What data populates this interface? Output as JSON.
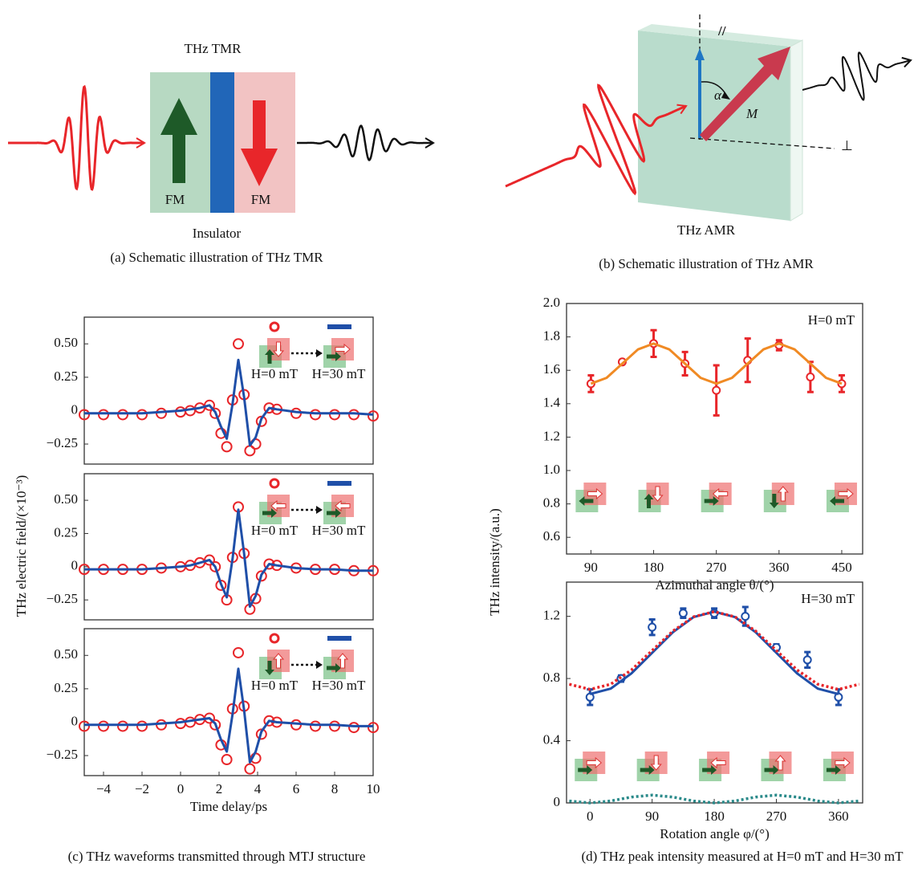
{
  "figure": {
    "panel_a": {
      "title": "THz TMR",
      "left_layer": "FM",
      "right_layer": "FM",
      "barrier": "Insulator",
      "caption": "(a) Schematic illustration of THz TMR"
    },
    "panel_b": {
      "parallel": "//",
      "angle": "α",
      "magnetization": "M",
      "perpendicular": "⊥",
      "label": "THz AMR",
      "caption": "(b) Schematic illustration of THz AMR"
    },
    "panel_c_caption": "(c) THz waveforms transmitted through MTJ structure",
    "panel_d_caption": "(d) THz peak intensity measured at H=0 mT and H=30 mT"
  },
  "chart_data": [
    {
      "type": "line",
      "ylabel": "THz electric field/(×10⁻³)",
      "x": [
        -5,
        -4,
        -3,
        -2,
        -1,
        0,
        0.5,
        1,
        1.5,
        1.8,
        2.1,
        2.4,
        2.7,
        3,
        3.3,
        3.6,
        3.9,
        4.2,
        4.6,
        5,
        6,
        7,
        8,
        9,
        10
      ],
      "series": [
        {
          "name": "H=0 mT",
          "color": "#e8262a",
          "style": "markers",
          "values": [
            -0.03,
            -0.03,
            -0.03,
            -0.03,
            -0.02,
            -0.01,
            0,
            0.02,
            0.04,
            -0.02,
            -0.17,
            -0.27,
            0.08,
            0.5,
            0.12,
            -0.3,
            -0.25,
            -0.08,
            0.02,
            0.01,
            -0.02,
            -0.03,
            -0.03,
            -0.03,
            -0.04
          ]
        },
        {
          "name": "H=30 mT",
          "color": "#1f4fa8",
          "style": "line",
          "values": [
            -0.02,
            -0.02,
            -0.02,
            -0.02,
            -0.01,
            0,
            0.01,
            0.02,
            0.04,
            -0.01,
            -0.12,
            -0.21,
            0.05,
            0.38,
            0.1,
            -0.26,
            -0.2,
            -0.06,
            0.02,
            0.01,
            -0.01,
            -0.02,
            -0.02,
            -0.02,
            -0.03
          ]
        }
      ],
      "xlim": [
        -5,
        10
      ],
      "ylim": [
        -0.4,
        0.7
      ],
      "yticks": [
        {
          "value": 0.5,
          "label": "0.50"
        },
        0.25,
        0,
        {
          "value": -0.25,
          "label": "−0.25"
        }
      ]
    },
    {
      "type": "line",
      "x": [
        -5,
        -4,
        -3,
        -2,
        -1,
        0,
        0.5,
        1,
        1.5,
        1.8,
        2.1,
        2.4,
        2.7,
        3,
        3.3,
        3.6,
        3.9,
        4.2,
        4.6,
        5,
        6,
        7,
        8,
        9,
        10
      ],
      "series": [
        {
          "name": "H=0 mT",
          "color": "#e8262a",
          "style": "markers",
          "values": [
            -0.02,
            -0.02,
            -0.02,
            -0.02,
            -0.01,
            0,
            0.01,
            0.03,
            0.05,
            0,
            -0.14,
            -0.25,
            0.07,
            0.45,
            0.1,
            -0.32,
            -0.24,
            -0.07,
            0.02,
            0.01,
            -0.01,
            -0.02,
            -0.02,
            -0.03,
            -0.03
          ]
        },
        {
          "name": "H=30 mT",
          "color": "#1f4fa8",
          "style": "line",
          "values": [
            -0.02,
            -0.02,
            -0.02,
            -0.02,
            -0.01,
            0,
            0.01,
            0.03,
            0.05,
            0,
            -0.13,
            -0.23,
            0.06,
            0.43,
            0.1,
            -0.3,
            -0.22,
            -0.06,
            0.02,
            0.01,
            -0.01,
            -0.02,
            -0.02,
            -0.03,
            -0.03
          ]
        }
      ],
      "xlim": [
        -5,
        10
      ],
      "ylim": [
        -0.4,
        0.7
      ],
      "yticks": [
        {
          "value": 0.5,
          "label": "0.50"
        },
        0.25,
        0,
        {
          "value": -0.25,
          "label": "−0.25"
        }
      ]
    },
    {
      "type": "line",
      "xlabel": "Time delay/ps",
      "x": [
        -5,
        -4,
        -3,
        -2,
        -1,
        0,
        0.5,
        1,
        1.5,
        1.8,
        2.1,
        2.4,
        2.7,
        3,
        3.3,
        3.6,
        3.9,
        4.2,
        4.6,
        5,
        6,
        7,
        8,
        9,
        10
      ],
      "series": [
        {
          "name": "H=0 mT",
          "color": "#e8262a",
          "style": "markers",
          "values": [
            -0.03,
            -0.03,
            -0.03,
            -0.03,
            -0.02,
            -0.01,
            0,
            0.02,
            0.03,
            -0.02,
            -0.17,
            -0.28,
            0.1,
            0.52,
            0.12,
            -0.35,
            -0.27,
            -0.09,
            0.01,
            0,
            -0.02,
            -0.03,
            -0.03,
            -0.04,
            -0.04
          ]
        },
        {
          "name": "H=30 mT",
          "color": "#1f4fa8",
          "style": "line",
          "values": [
            -0.02,
            -0.02,
            -0.02,
            -0.02,
            -0.01,
            0,
            0.01,
            0.02,
            0.03,
            -0.01,
            -0.13,
            -0.22,
            0.06,
            0.4,
            0.09,
            -0.3,
            -0.22,
            -0.07,
            0.01,
            0,
            -0.01,
            -0.02,
            -0.02,
            -0.03,
            -0.03
          ]
        }
      ],
      "xlim": [
        -5,
        10
      ],
      "ylim": [
        -0.4,
        0.7
      ],
      "xticks": [
        {
          "value": -4,
          "label": "−4"
        },
        {
          "value": -2,
          "label": "−2"
        },
        0,
        2,
        4,
        6,
        8,
        10
      ],
      "yticks": [
        {
          "value": 0.5,
          "label": "0.50"
        },
        0.25,
        0,
        {
          "value": -0.25,
          "label": "−0.25"
        }
      ]
    },
    {
      "type": "scatter",
      "ylabel": "THz intensity/(a.u.)",
      "xlabel": "Azimuthal angle θ/(°)",
      "annotation": "H=0 mT",
      "series": [
        {
          "color": "#e8262a",
          "style": "markers",
          "x": [
            90,
            135,
            180,
            225,
            270,
            315,
            360,
            405,
            450
          ],
          "values": [
            1.52,
            1.65,
            1.76,
            1.64,
            1.48,
            1.66,
            1.75,
            1.56,
            1.52
          ],
          "errors": [
            0.05,
            null,
            0.08,
            0.07,
            0.15,
            0.13,
            0.03,
            0.09,
            0.05
          ]
        },
        {
          "color": "#f08a24",
          "style": "line",
          "x": [
            90,
            112.5,
            135,
            157.5,
            180,
            202.5,
            225,
            247.5,
            270,
            292.5,
            315,
            337.5,
            360,
            382.5,
            405,
            427.5,
            450
          ],
          "values": [
            1.52,
            1.555,
            1.64,
            1.725,
            1.76,
            1.725,
            1.64,
            1.555,
            1.52,
            1.555,
            1.64,
            1.725,
            1.76,
            1.725,
            1.64,
            1.555,
            1.52
          ]
        }
      ],
      "xlim": [
        55,
        480
      ],
      "ylim": [
        0.5,
        2.0
      ],
      "xticks": [
        90,
        180,
        270,
        360,
        450
      ],
      "yticks": [
        0.6,
        0.8,
        {
          "value": 1.0,
          "label": "1.0"
        },
        1.2,
        1.4,
        1.6,
        1.8,
        {
          "value": 2.0,
          "label": "2.0"
        }
      ]
    },
    {
      "type": "scatter",
      "xlabel": "Rotation angle φ/(°)",
      "annotation": "H=30 mT",
      "series": [
        {
          "color": "#1f4fa8",
          "style": "markers",
          "x": [
            0,
            45,
            90,
            135,
            180,
            225,
            270,
            315,
            360
          ],
          "values": [
            0.68,
            0.8,
            1.13,
            1.22,
            1.22,
            1.2,
            1.0,
            0.92,
            0.68
          ],
          "errors": [
            0.05,
            0.02,
            0.05,
            0.03,
            0.03,
            0.06,
            0.02,
            0.05,
            0.05
          ]
        },
        {
          "color": "#1f4fa8",
          "style": "line",
          "x": [
            0,
            30,
            60,
            90,
            120,
            150,
            180,
            210,
            240,
            270,
            300,
            330,
            360
          ],
          "values": [
            0.7,
            0.735,
            0.833,
            0.965,
            1.098,
            1.195,
            1.23,
            1.195,
            1.098,
            0.965,
            0.833,
            0.735,
            0.7
          ]
        },
        {
          "color": "#e8262a",
          "style": "dotted",
          "x": [
            -30,
            0,
            30,
            60,
            90,
            120,
            150,
            180,
            210,
            240,
            270,
            300,
            330,
            360,
            390
          ],
          "values": [
            0.763,
            0.73,
            0.763,
            0.855,
            0.98,
            1.105,
            1.197,
            1.23,
            1.197,
            1.105,
            0.98,
            0.855,
            0.763,
            0.73,
            0.763
          ]
        },
        {
          "color": "#2a8a8a",
          "style": "dotted",
          "x": [
            -30,
            0,
            30,
            60,
            90,
            120,
            150,
            180,
            210,
            240,
            270,
            300,
            330,
            360,
            390
          ],
          "values": [
            0.0125,
            0,
            0.0125,
            0.0375,
            0.05,
            0.0375,
            0.0125,
            0,
            0.0125,
            0.0375,
            0.05,
            0.0375,
            0.0125,
            0,
            0.0125
          ]
        }
      ],
      "xlim": [
        -34,
        395
      ],
      "ylim": [
        0,
        1.42
      ],
      "xticks": [
        0,
        90,
        180,
        270,
        360
      ],
      "yticks": [
        0,
        0.4,
        0.8,
        1.2
      ]
    }
  ]
}
